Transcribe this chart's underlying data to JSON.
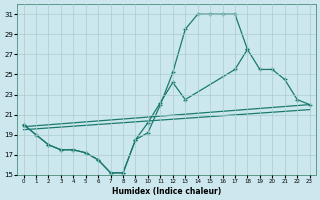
{
  "xlabel": "Humidex (Indice chaleur)",
  "bg_color": "#cce8ee",
  "grid_color": "#aacccc",
  "line_color": "#1a7a6e",
  "xlim": [
    -0.5,
    23.5
  ],
  "ylim": [
    15,
    32
  ],
  "xticks": [
    0,
    1,
    2,
    3,
    4,
    5,
    6,
    7,
    8,
    9,
    10,
    11,
    12,
    13,
    14,
    15,
    16,
    17,
    18,
    19,
    20,
    21,
    22,
    23
  ],
  "yticks": [
    15,
    17,
    19,
    21,
    23,
    25,
    27,
    29,
    31
  ],
  "curve1_x": [
    0,
    1,
    2,
    3,
    4,
    5,
    6,
    7,
    8,
    9,
    10,
    11,
    12,
    13,
    14,
    15,
    16,
    17,
    18
  ],
  "curve1_y": [
    20.0,
    19.0,
    18.0,
    17.5,
    17.5,
    17.2,
    16.5,
    15.2,
    15.2,
    18.5,
    19.2,
    22.0,
    25.2,
    29.5,
    31.0,
    31.0,
    31.0,
    31.0,
    27.5
  ],
  "curve2_x": [
    0,
    1,
    2,
    3,
    4,
    5,
    6,
    7,
    8,
    9,
    10,
    11,
    12,
    13,
    17,
    18,
    19,
    20,
    21,
    22,
    23
  ],
  "curve2_y": [
    20.0,
    19.0,
    18.0,
    17.5,
    17.5,
    17.2,
    16.5,
    15.2,
    15.2,
    18.5,
    20.2,
    22.2,
    24.2,
    22.5,
    25.5,
    27.5,
    25.5,
    25.5,
    24.5,
    22.5,
    22.0
  ],
  "line1_x": [
    0,
    23
  ],
  "line1_y": [
    19.8,
    22.0
  ],
  "line2_x": [
    0,
    23
  ],
  "line2_y": [
    19.5,
    21.5
  ]
}
